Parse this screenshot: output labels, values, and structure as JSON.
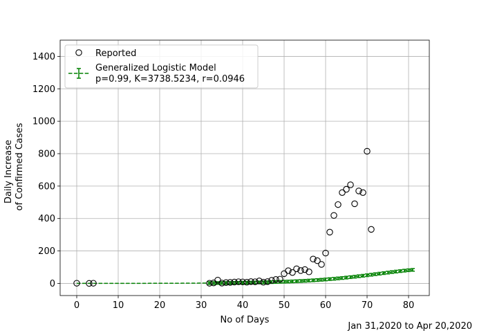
{
  "chart_data": {
    "type": "scatter",
    "xlabel": "No of Days",
    "ylabel": [
      "Daily Increase",
      "of Confirmed Cases"
    ],
    "footnote": "Jan 31,2020 to Apr 20,2020",
    "xlim": [
      -4,
      85
    ],
    "ylim": [
      -75,
      1500
    ],
    "x_ticks": [
      0,
      10,
      20,
      30,
      40,
      50,
      60,
      70,
      80
    ],
    "y_ticks": [
      0,
      200,
      400,
      600,
      800,
      1000,
      1200,
      1400
    ],
    "grid": true,
    "legend_position": "top-left",
    "legend": [
      {
        "label": "Reported",
        "marker": "open-circle"
      },
      {
        "label": "Generalized Logistic Model",
        "sub": "p=0.99, K=3738.5234, r=0.0946",
        "marker": "dashed-errorbar"
      }
    ],
    "series": [
      {
        "name": "Reported",
        "color": "#000000",
        "style": "open-circle",
        "points": [
          [
            0,
            1
          ],
          [
            3,
            0
          ],
          [
            4,
            1
          ],
          [
            32,
            1
          ],
          [
            33,
            3
          ],
          [
            34,
            20
          ],
          [
            35,
            2
          ],
          [
            36,
            5
          ],
          [
            37,
            6
          ],
          [
            38,
            8
          ],
          [
            39,
            10
          ],
          [
            40,
            9
          ],
          [
            41,
            7
          ],
          [
            42,
            11
          ],
          [
            43,
            10
          ],
          [
            44,
            15
          ],
          [
            45,
            7
          ],
          [
            46,
            11
          ],
          [
            47,
            19
          ],
          [
            48,
            24
          ],
          [
            49,
            26
          ],
          [
            50,
            60
          ],
          [
            51,
            78
          ],
          [
            52,
            67
          ],
          [
            53,
            90
          ],
          [
            54,
            79
          ],
          [
            55,
            85
          ],
          [
            56,
            71
          ],
          [
            57,
            150
          ],
          [
            58,
            140
          ],
          [
            59,
            117
          ],
          [
            60,
            187
          ],
          [
            61,
            316
          ],
          [
            62,
            419
          ],
          [
            63,
            486
          ],
          [
            64,
            560
          ],
          [
            65,
            580
          ],
          [
            66,
            608
          ],
          [
            67,
            491
          ],
          [
            68,
            570
          ],
          [
            69,
            560
          ],
          [
            70,
            815
          ],
          [
            71,
            333
          ]
        ]
      },
      {
        "name": "Generalized Logistic Model",
        "color": "#008000",
        "style": "dashed-errorbar",
        "K": 3738.5234,
        "r": 0.0946,
        "p": 0.99,
        "errorbar_x": [
          32,
          33,
          34,
          35,
          36,
          37,
          38,
          39,
          40,
          41,
          42,
          43,
          44,
          45,
          46,
          47,
          48,
          49,
          50,
          51,
          52,
          53,
          54,
          55,
          56,
          57,
          58,
          59,
          60,
          61,
          62,
          63,
          64,
          65,
          66,
          67,
          68,
          69,
          70,
          71,
          72,
          73,
          74,
          75,
          76,
          77,
          78,
          79,
          80,
          81
        ],
        "errorbar_rel": 0.075
      }
    ]
  }
}
